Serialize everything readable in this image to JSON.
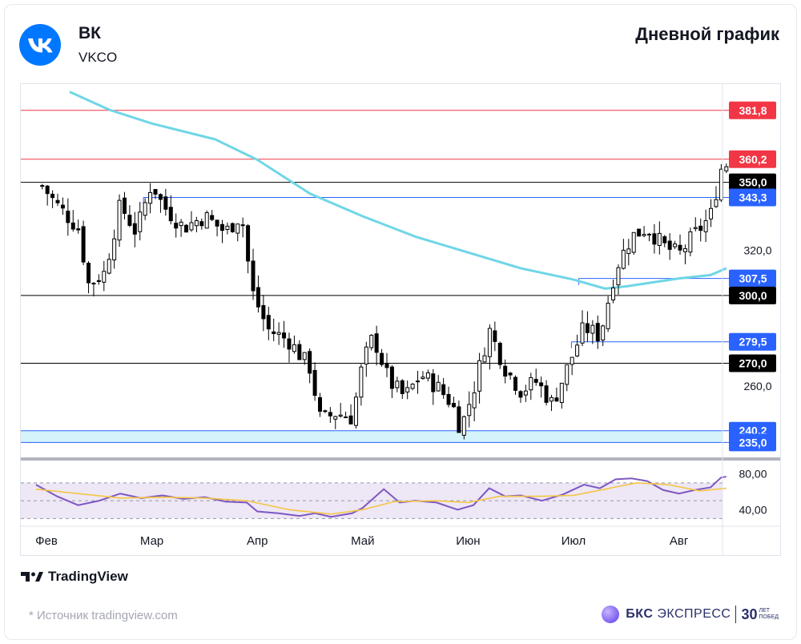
{
  "header": {
    "ticker": "ВК",
    "symbol": "VKCO",
    "title": "Дневной график",
    "logo_icon": "vk-logo-icon",
    "brand_color": "#0077ff"
  },
  "footer": {
    "tradingview": "TradingView",
    "source": "*  Источник tradingview.com",
    "bcs_name_bold": "БКС",
    "bcs_name": " ЭКСПРЕСС",
    "bcs_30": "30",
    "bcs_small_1": "ЛЕТ",
    "bcs_small_2": "ПОБЕД"
  },
  "chart_data": {
    "type": "candlestick",
    "months": [
      "Фев",
      "Мар",
      "Апр",
      "Май",
      "Июн",
      "Июл",
      "Авг"
    ],
    "price_ylim": [
      227,
      392
    ],
    "price_tick_labels": [
      {
        "value": 260,
        "label": "260,0"
      },
      {
        "value": 320,
        "label": "320,0"
      }
    ],
    "levels": [
      {
        "value": 381.8,
        "label": "381,8",
        "color": "#f23645",
        "style": "red"
      },
      {
        "value": 360.2,
        "label": "360,2",
        "color": "#f23645",
        "style": "red"
      },
      {
        "value": 350.0,
        "label": "350,0",
        "color": "#000000",
        "style": "black"
      },
      {
        "value": 343.3,
        "label": "343,3",
        "color": "#2962ff",
        "style": "blue",
        "start_month": 0.92
      },
      {
        "value": 307.5,
        "label": "307,5",
        "color": "#2962ff",
        "style": "blue",
        "start_month": 5.05
      },
      {
        "value": 300.0,
        "label": "300,0",
        "color": "#000000",
        "style": "black"
      },
      {
        "value": 279.5,
        "label": "279,5",
        "color": "#2962ff",
        "style": "blue",
        "start_month": 4.98
      },
      {
        "value": 270.0,
        "label": "270,0",
        "color": "#000000",
        "style": "black"
      },
      {
        "value": 240.2,
        "label": "240,2",
        "color": "#2962ff",
        "style": "blue"
      },
      {
        "value": 235.0,
        "label": "235,0",
        "color": "#2962ff",
        "style": "blue"
      }
    ],
    "support_zone": [
      235.0,
      240.2
    ],
    "candle_colors": {
      "up": "#ffffff",
      "down": "#000000",
      "wick": "#000000"
    },
    "sma_color": "#6fd6e6",
    "sma": [
      {
        "m": 0.22,
        "v": 390
      },
      {
        "m": 0.6,
        "v": 382
      },
      {
        "m": 1.0,
        "v": 376
      },
      {
        "m": 1.6,
        "v": 369
      },
      {
        "m": 2.0,
        "v": 360
      },
      {
        "m": 2.5,
        "v": 345
      },
      {
        "m": 3.0,
        "v": 335
      },
      {
        "m": 3.5,
        "v": 326
      },
      {
        "m": 4.0,
        "v": 319
      },
      {
        "m": 4.5,
        "v": 312
      },
      {
        "m": 5.0,
        "v": 307
      },
      {
        "m": 5.3,
        "v": 303
      },
      {
        "m": 5.5,
        "v": 304
      },
      {
        "m": 6.0,
        "v": 307.5
      },
      {
        "m": 6.3,
        "v": 309
      },
      {
        "m": 6.45,
        "v": 312
      }
    ],
    "price_path": [
      {
        "m": -0.1,
        "v": 352
      },
      {
        "m": 0.1,
        "v": 340
      },
      {
        "m": 0.3,
        "v": 330
      },
      {
        "m": 0.4,
        "v": 305
      },
      {
        "m": 0.55,
        "v": 310
      },
      {
        "m": 0.7,
        "v": 340
      },
      {
        "m": 0.85,
        "v": 328
      },
      {
        "m": 1.0,
        "v": 350
      },
      {
        "m": 1.1,
        "v": 340
      },
      {
        "m": 1.3,
        "v": 330
      },
      {
        "m": 1.5,
        "v": 335
      },
      {
        "m": 1.7,
        "v": 328
      },
      {
        "m": 1.85,
        "v": 336
      },
      {
        "m": 1.95,
        "v": 302
      },
      {
        "m": 2.1,
        "v": 285
      },
      {
        "m": 2.3,
        "v": 280
      },
      {
        "m": 2.5,
        "v": 268
      },
      {
        "m": 2.6,
        "v": 245
      },
      {
        "m": 2.75,
        "v": 248
      },
      {
        "m": 2.9,
        "v": 246
      },
      {
        "m": 3.0,
        "v": 270
      },
      {
        "m": 3.1,
        "v": 282
      },
      {
        "m": 3.25,
        "v": 262
      },
      {
        "m": 3.4,
        "v": 255
      },
      {
        "m": 3.55,
        "v": 265
      },
      {
        "m": 3.7,
        "v": 260
      },
      {
        "m": 3.85,
        "v": 252
      },
      {
        "m": 3.93,
        "v": 241
      },
      {
        "m": 4.05,
        "v": 258
      },
      {
        "m": 4.2,
        "v": 285
      },
      {
        "m": 4.35,
        "v": 268
      },
      {
        "m": 4.5,
        "v": 258
      },
      {
        "m": 4.65,
        "v": 262
      },
      {
        "m": 4.8,
        "v": 252
      },
      {
        "m": 4.95,
        "v": 269
      },
      {
        "m": 5.1,
        "v": 286
      },
      {
        "m": 5.25,
        "v": 282
      },
      {
        "m": 5.4,
        "v": 312
      },
      {
        "m": 5.55,
        "v": 326
      },
      {
        "m": 5.7,
        "v": 330
      },
      {
        "m": 5.85,
        "v": 322
      },
      {
        "m": 6.0,
        "v": 318
      },
      {
        "m": 6.15,
        "v": 327
      },
      {
        "m": 6.3,
        "v": 335
      },
      {
        "m": 6.4,
        "v": 356
      },
      {
        "m": 6.45,
        "v": 358
      }
    ],
    "rsi": {
      "ylim": [
        25,
        95
      ],
      "tick_labels": [
        {
          "value": 80,
          "label": "80,00"
        },
        {
          "value": 40,
          "label": "40,00"
        }
      ],
      "band": [
        30,
        70
      ],
      "line_color": "#7e57c2",
      "ma_color": "#f5c542",
      "band_color": "#ede7f6",
      "line": [
        {
          "m": -0.1,
          "v": 68
        },
        {
          "m": 0.1,
          "v": 55
        },
        {
          "m": 0.3,
          "v": 45
        },
        {
          "m": 0.5,
          "v": 50
        },
        {
          "m": 0.7,
          "v": 58
        },
        {
          "m": 0.9,
          "v": 53
        },
        {
          "m": 1.1,
          "v": 56
        },
        {
          "m": 1.3,
          "v": 52
        },
        {
          "m": 1.5,
          "v": 54
        },
        {
          "m": 1.7,
          "v": 49
        },
        {
          "m": 1.9,
          "v": 48
        },
        {
          "m": 2.0,
          "v": 38
        },
        {
          "m": 2.2,
          "v": 36
        },
        {
          "m": 2.4,
          "v": 33
        },
        {
          "m": 2.55,
          "v": 36
        },
        {
          "m": 2.7,
          "v": 32
        },
        {
          "m": 2.9,
          "v": 36
        },
        {
          "m": 3.0,
          "v": 42
        },
        {
          "m": 3.2,
          "v": 63
        },
        {
          "m": 3.35,
          "v": 48
        },
        {
          "m": 3.5,
          "v": 50
        },
        {
          "m": 3.7,
          "v": 48
        },
        {
          "m": 3.9,
          "v": 40
        },
        {
          "m": 4.05,
          "v": 45
        },
        {
          "m": 4.2,
          "v": 64
        },
        {
          "m": 4.35,
          "v": 55
        },
        {
          "m": 4.5,
          "v": 56
        },
        {
          "m": 4.7,
          "v": 50
        },
        {
          "m": 4.9,
          "v": 57
        },
        {
          "m": 5.1,
          "v": 68
        },
        {
          "m": 5.25,
          "v": 64
        },
        {
          "m": 5.4,
          "v": 74
        },
        {
          "m": 5.55,
          "v": 75
        },
        {
          "m": 5.7,
          "v": 72
        },
        {
          "m": 5.85,
          "v": 62
        },
        {
          "m": 6.0,
          "v": 58
        },
        {
          "m": 6.15,
          "v": 62
        },
        {
          "m": 6.3,
          "v": 65
        },
        {
          "m": 6.4,
          "v": 76
        },
        {
          "m": 6.45,
          "v": 77
        }
      ],
      "ma": [
        {
          "m": -0.1,
          "v": 63
        },
        {
          "m": 0.3,
          "v": 58
        },
        {
          "m": 0.7,
          "v": 53
        },
        {
          "m": 1.1,
          "v": 54
        },
        {
          "m": 1.5,
          "v": 53
        },
        {
          "m": 1.9,
          "v": 50
        },
        {
          "m": 2.3,
          "v": 40
        },
        {
          "m": 2.7,
          "v": 35
        },
        {
          "m": 3.0,
          "v": 40
        },
        {
          "m": 3.3,
          "v": 49
        },
        {
          "m": 3.7,
          "v": 50
        },
        {
          "m": 4.0,
          "v": 48
        },
        {
          "m": 4.3,
          "v": 55
        },
        {
          "m": 4.7,
          "v": 55
        },
        {
          "m": 5.0,
          "v": 56
        },
        {
          "m": 5.3,
          "v": 63
        },
        {
          "m": 5.6,
          "v": 70
        },
        {
          "m": 5.9,
          "v": 68
        },
        {
          "m": 6.2,
          "v": 61
        },
        {
          "m": 6.45,
          "v": 64
        }
      ]
    }
  }
}
